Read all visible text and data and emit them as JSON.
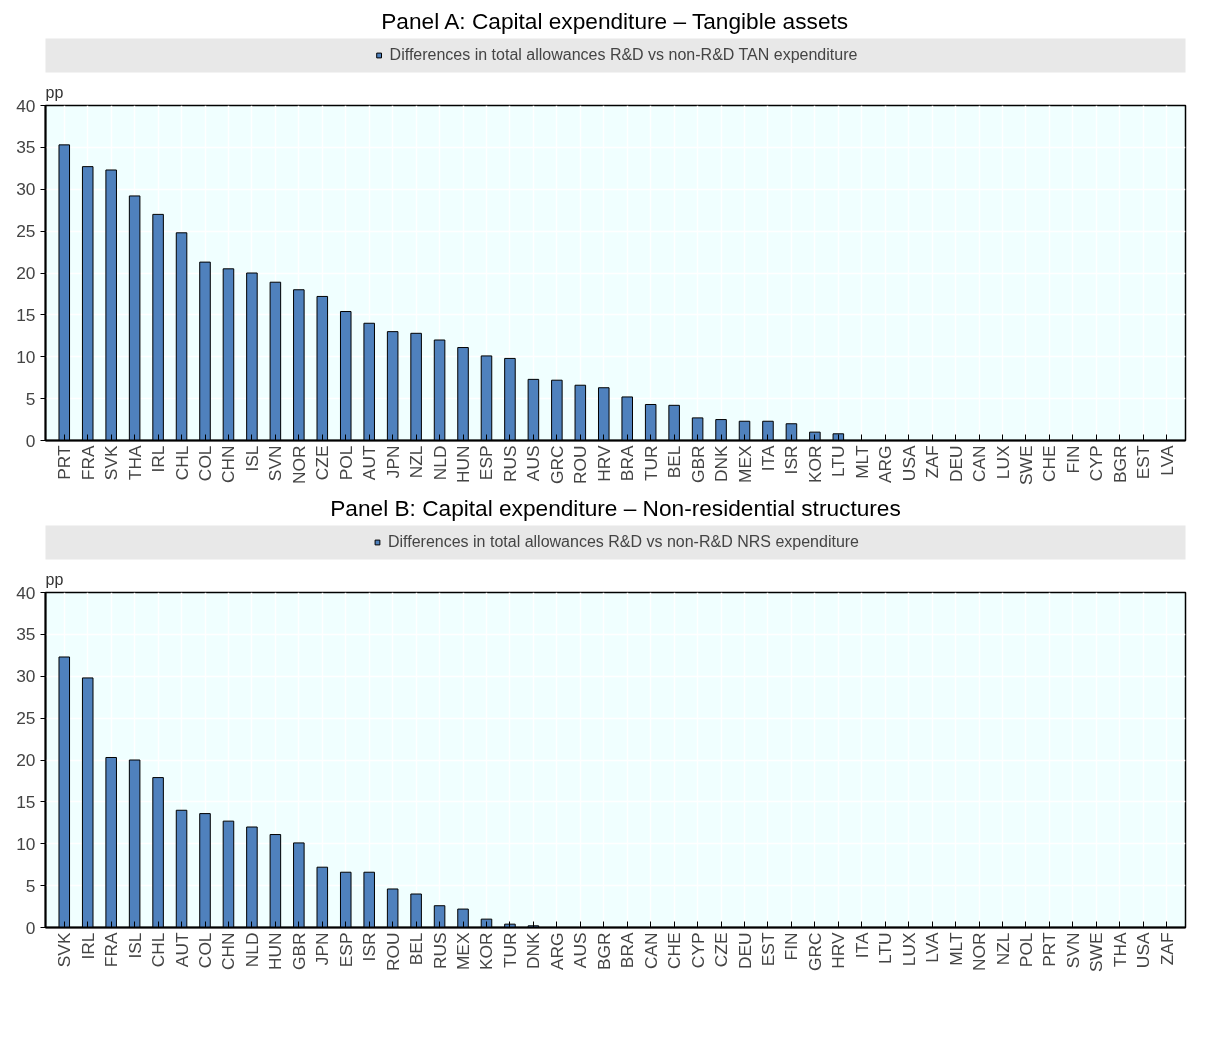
{
  "chart_data": [
    {
      "type": "bar",
      "title": "Panel A: Capital expenditure – Tangible assets",
      "ylabel": "pp",
      "categories": [
        "PRT",
        "FRA",
        "SVK",
        "THA",
        "IRL",
        "CHL",
        "COL",
        "CHN",
        "ISL",
        "SVN",
        "NOR",
        "CZE",
        "POL",
        "AUT",
        "JPN",
        "NZL",
        "NLD",
        "HUN",
        "ESP",
        "RUS",
        "AUS",
        "GRC",
        "ROU",
        "HRV",
        "BRA",
        "TUR",
        "BEL",
        "GBR",
        "DNK",
        "MEX",
        "ITA",
        "ISR",
        "KOR",
        "LTU",
        "MLT",
        "ARG",
        "USA",
        "ZAF",
        "DEU",
        "CAN",
        "LUX",
        "SWE",
        "CHE",
        "FIN",
        "CYP",
        "BGR",
        "EST",
        "LVA"
      ],
      "series": [
        {
          "name": "Differences in total allowances R&D vs non-R&D TAN expenditure",
          "color": "#4f81bd",
          "values": [
            35.3,
            32.7,
            32.3,
            29.2,
            27.0,
            24.8,
            21.3,
            20.5,
            20.0,
            18.9,
            18.0,
            17.2,
            15.4,
            14.0,
            13.0,
            12.8,
            12.0,
            11.1,
            10.1,
            9.8,
            7.3,
            7.2,
            6.6,
            6.3,
            5.2,
            4.3,
            4.2,
            2.7,
            2.5,
            2.3,
            2.3,
            2.0,
            1.0,
            0.8,
            0,
            0,
            0,
            0,
            0,
            0,
            0,
            0,
            0,
            0,
            0,
            0,
            0,
            0
          ]
        }
      ],
      "ylim": [
        0,
        40
      ],
      "yticks": [
        0,
        5,
        10,
        15,
        20,
        25,
        30,
        35,
        40
      ],
      "grid": true,
      "legend": "top"
    },
    {
      "type": "bar",
      "title": "Panel B: Capital expenditure – Non-residential structures",
      "ylabel": "pp",
      "categories": [
        "SVK",
        "IRL",
        "FRA",
        "ISL",
        "CHL",
        "AUT",
        "COL",
        "CHN",
        "NLD",
        "HUN",
        "GBR",
        "JPN",
        "ESP",
        "ISR",
        "ROU",
        "BEL",
        "RUS",
        "MEX",
        "KOR",
        "TUR",
        "DNK",
        "ARG",
        "AUS",
        "BGR",
        "BRA",
        "CAN",
        "CHE",
        "CYP",
        "CZE",
        "DEU",
        "EST",
        "FIN",
        "GRC",
        "HRV",
        "ITA",
        "LTU",
        "LUX",
        "LVA",
        "MLT",
        "NOR",
        "NZL",
        "POL",
        "PRT",
        "SVN",
        "SWE",
        "THA",
        "USA",
        "ZAF"
      ],
      "series": [
        {
          "name": "Differences in total allowances R&D vs non-R&D NRS expenditure",
          "color": "#4f81bd",
          "values": [
            32.3,
            29.8,
            20.3,
            20.0,
            17.9,
            14.0,
            13.6,
            12.7,
            12.0,
            11.1,
            10.1,
            7.2,
            6.6,
            6.6,
            4.6,
            4.0,
            2.6,
            2.2,
            1.0,
            0.4,
            0.2,
            0,
            0,
            0,
            0,
            0,
            0,
            0,
            0,
            0,
            0,
            0,
            0,
            0,
            0,
            0,
            0,
            0,
            0,
            0,
            0,
            0,
            0,
            0,
            0,
            0,
            0,
            0
          ]
        }
      ],
      "ylim": [
        0,
        40
      ],
      "yticks": [
        0,
        5,
        10,
        15,
        20,
        25,
        30,
        35,
        40
      ],
      "grid": true,
      "legend": "top"
    }
  ]
}
